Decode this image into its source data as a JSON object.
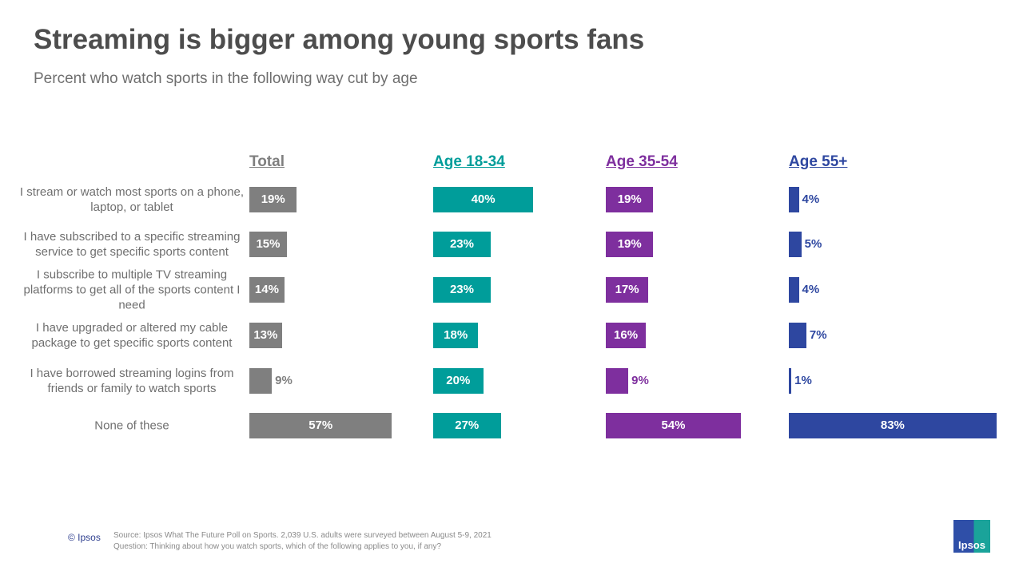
{
  "title": "Streaming is bigger among young sports fans",
  "subtitle": "Percent who watch sports in the following way cut by age",
  "chart_data": {
    "type": "bar",
    "orientation": "horizontal",
    "categories": [
      "I stream or watch most sports on a phone, laptop, or tablet",
      "I have subscribed to a specific streaming service to get specific sports content",
      "I subscribe to multiple TV streaming platforms to get all of the sports content I need",
      "I have upgraded or altered my cable package to get specific sports content",
      "I have borrowed streaming logins from friends or family to watch sports",
      "None of these"
    ],
    "series": [
      {
        "name": "Total",
        "color": "#7f7f7f",
        "values": [
          19,
          15,
          14,
          13,
          9,
          57
        ],
        "labels": [
          "19%",
          "15%",
          "14%",
          "13%",
          "9%",
          "57%"
        ]
      },
      {
        "name": "Age 18-34",
        "color": "#009d9a",
        "values": [
          40,
          23,
          23,
          18,
          20,
          27
        ],
        "labels": [
          "40%",
          "23%",
          "23%",
          "18%",
          "20%",
          "27%"
        ]
      },
      {
        "name": "Age 35-54",
        "color": "#7e2f9e",
        "values": [
          19,
          19,
          17,
          16,
          9,
          54
        ],
        "labels": [
          "19%",
          "19%",
          "17%",
          "16%",
          "9%",
          "54%"
        ]
      },
      {
        "name": "Age 55+",
        "color": "#2e47a0",
        "values": [
          4,
          5,
          4,
          7,
          1,
          83
        ],
        "labels": [
          "4%",
          "5%",
          "4%",
          "7%",
          "1%",
          "83%"
        ]
      }
    ]
  },
  "footer": {
    "copyright": "© Ipsos",
    "source": "Source: Ipsos What The Future Poll on Sports. 2,039 U.S. adults were surveyed between August 5-9, 2021",
    "question": "Question: Thinking about how you watch sports, which of the following applies to you, if any?",
    "logo": "Ipsos"
  }
}
